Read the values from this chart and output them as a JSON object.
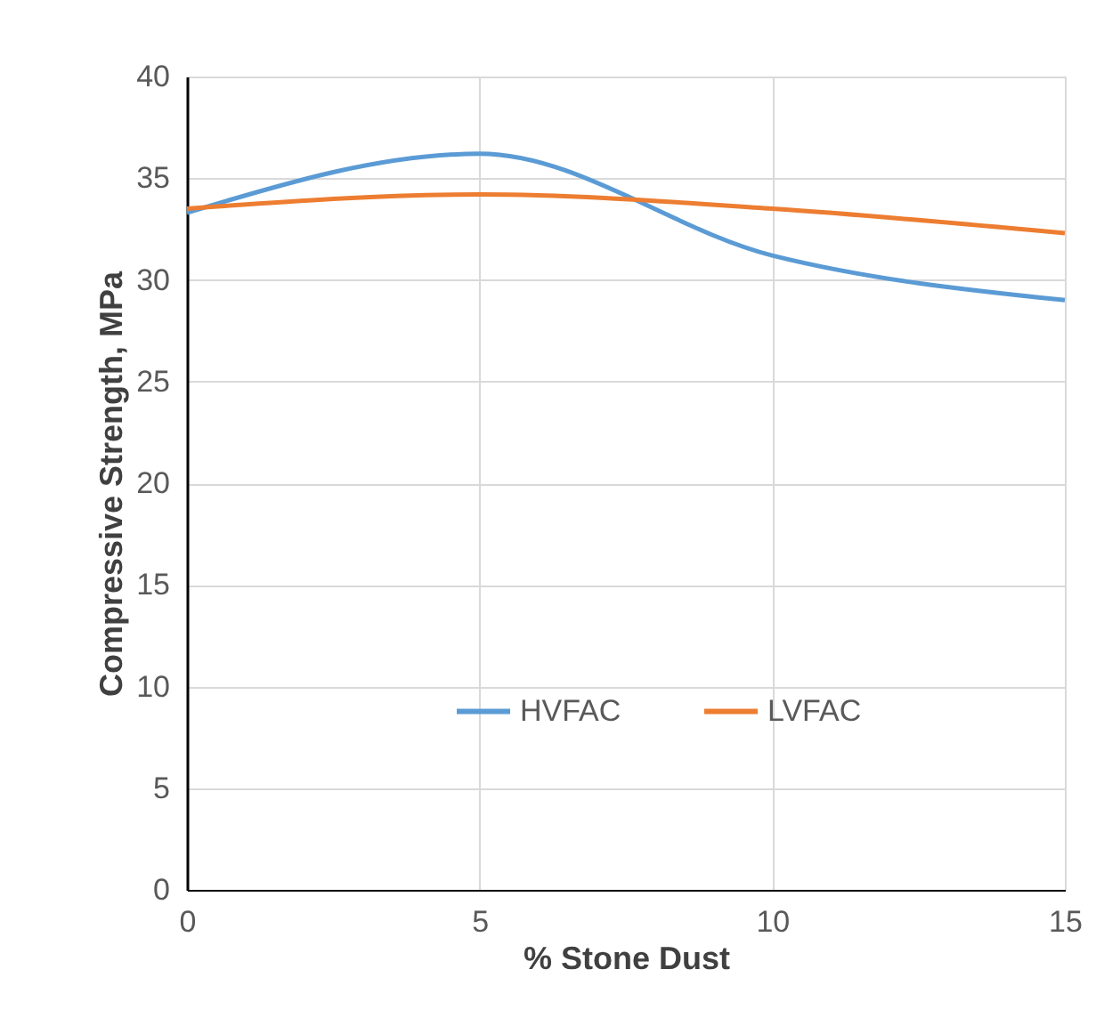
{
  "chart_data": {
    "type": "line",
    "xlabel": "% Stone Dust",
    "ylabel": "Compressive Strength, MPa",
    "x": [
      0,
      5,
      10,
      15
    ],
    "series": [
      {
        "name": "HVFAC",
        "color": "#5b9bd5",
        "values": [
          33.3,
          36.2,
          31.2,
          29.0
        ]
      },
      {
        "name": "LVFAC",
        "color": "#ed7d31",
        "values": [
          33.5,
          34.2,
          33.5,
          32.3
        ]
      }
    ],
    "xlim": [
      0,
      15
    ],
    "xticks": [
      0,
      5,
      10,
      15
    ],
    "ylim": [
      0,
      40
    ],
    "yticks": [
      0,
      5,
      10,
      15,
      20,
      25,
      30,
      35,
      40
    ],
    "grid": true,
    "legend": "bottom",
    "marker": "none",
    "line_style": "solid"
  }
}
